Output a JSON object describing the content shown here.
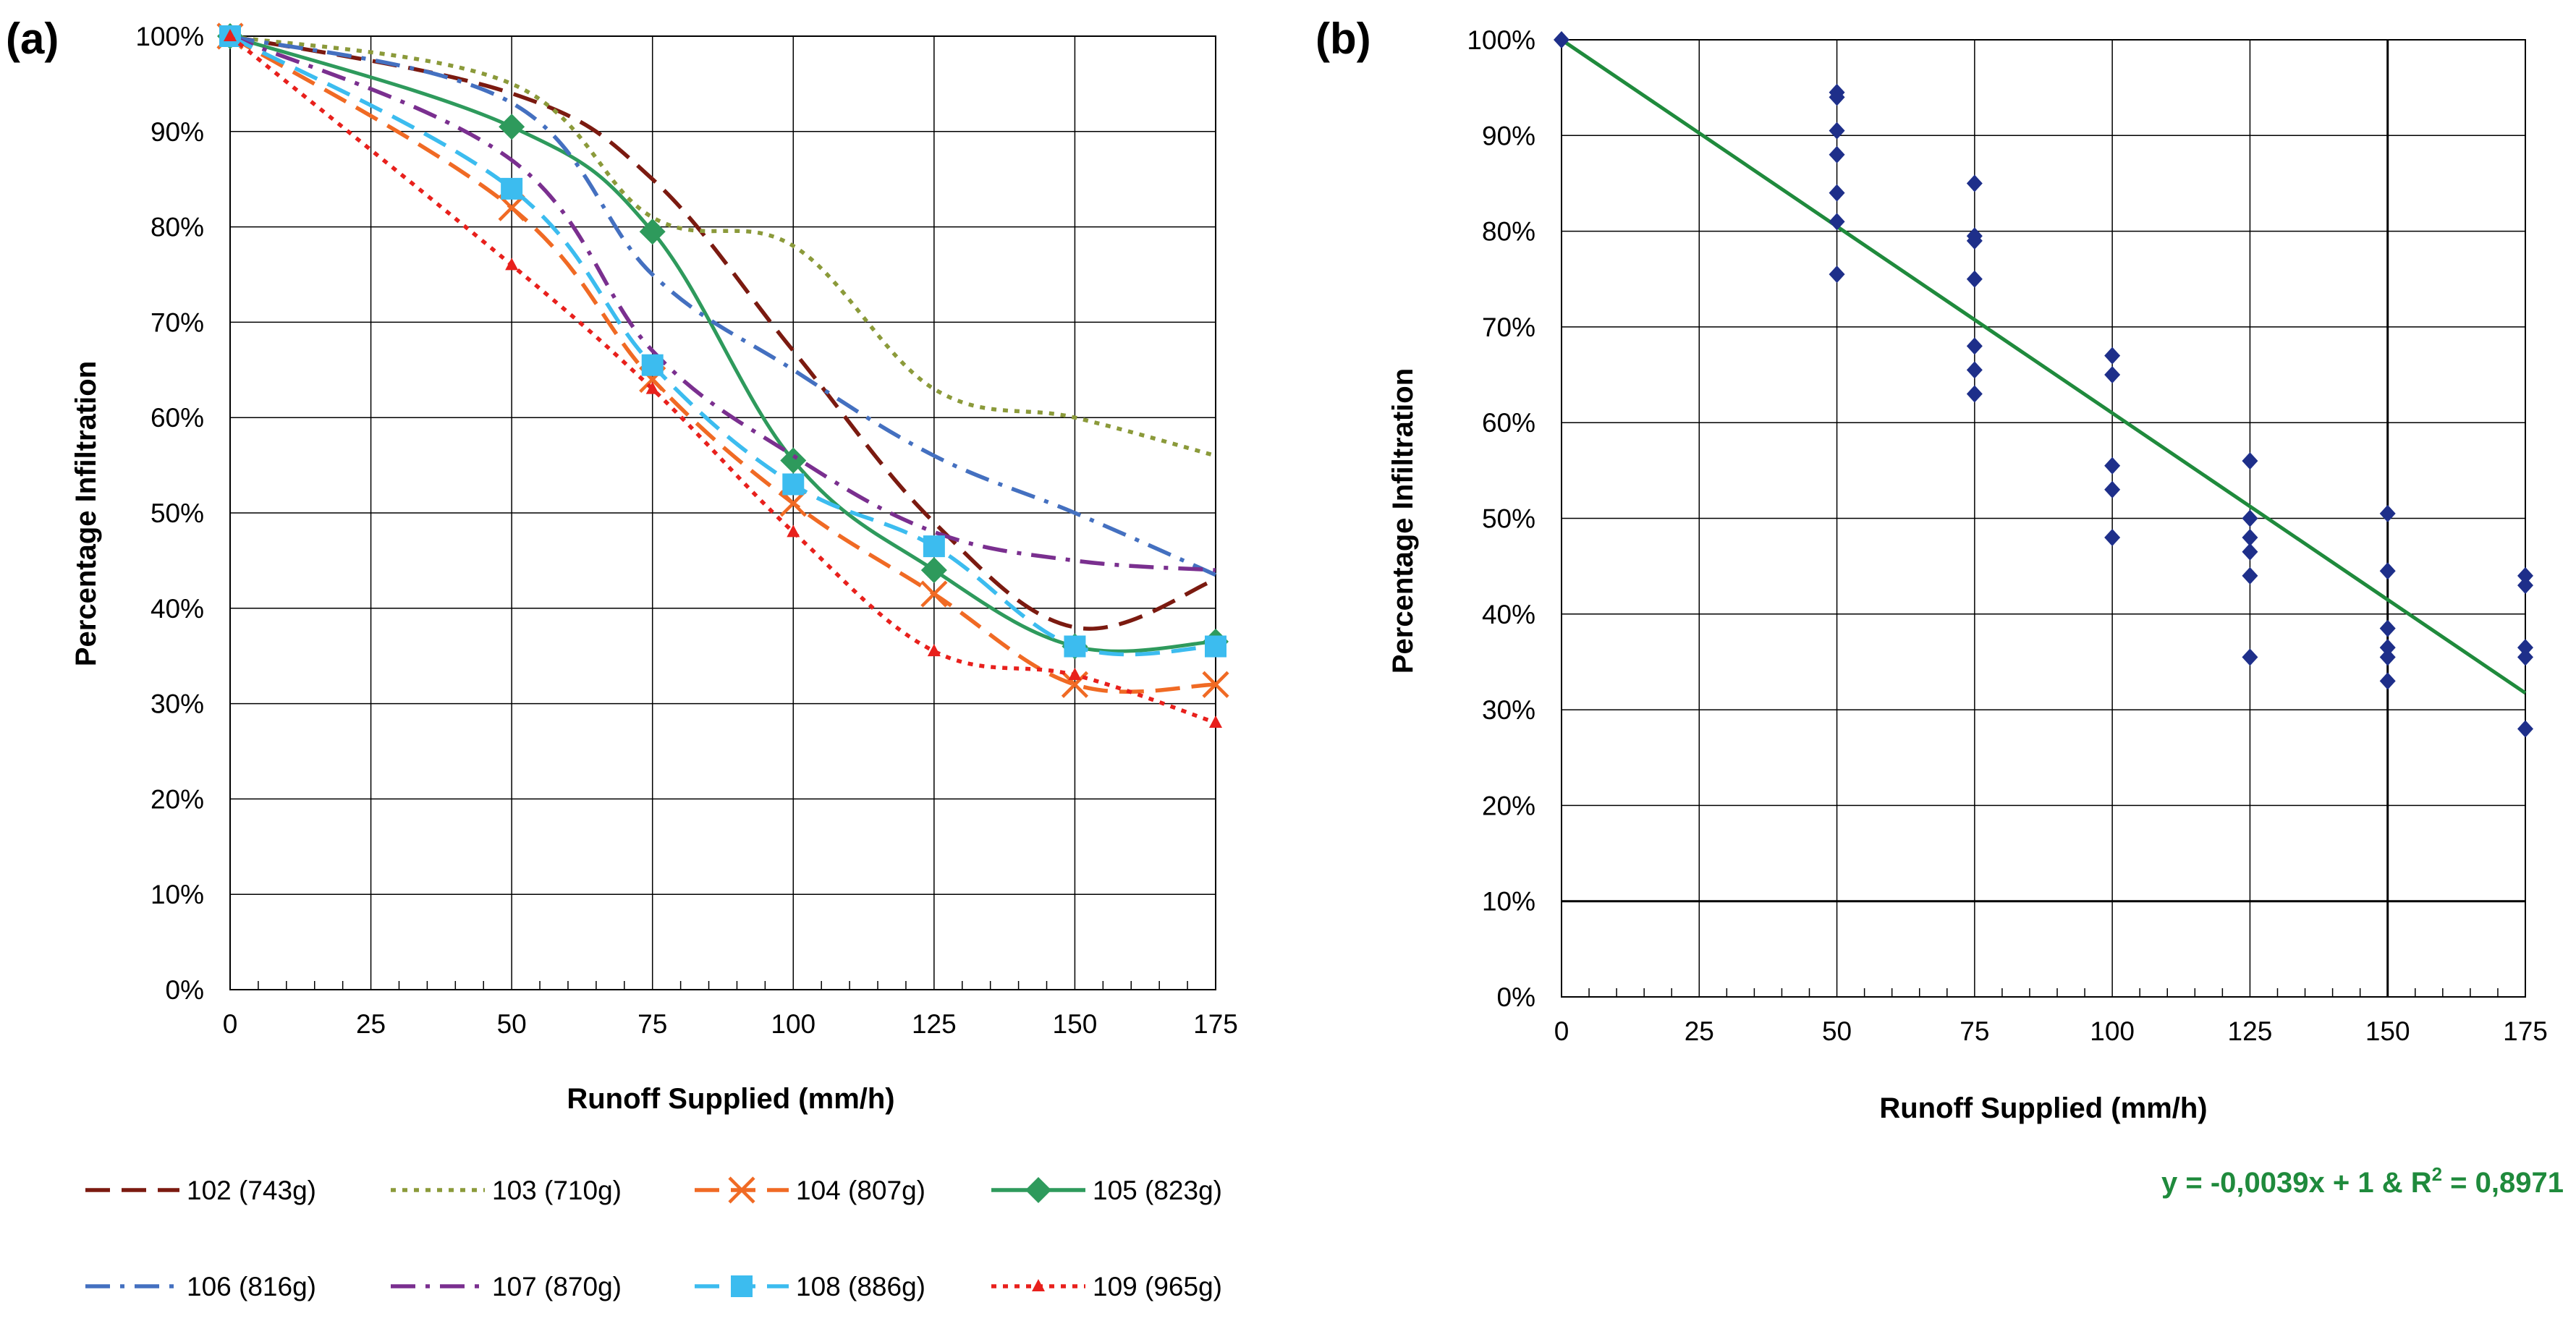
{
  "panels": {
    "a": {
      "label": "(a)"
    },
    "b": {
      "label": "(b)"
    }
  },
  "colors": {
    "s102": "#7b1a10",
    "s103": "#8b9a3a",
    "s104": "#f06a24",
    "s105": "#2e9a5c",
    "s106": "#4470c0",
    "s107": "#7a2f8f",
    "s108": "#3cbcef",
    "s109": "#e8201c",
    "scatter": "#1e2f8a",
    "fit": "#1f8a3c"
  },
  "equation": {
    "part1": "y = -0,0039x + 1   &   R",
    "sup": "2",
    "part2": " = 0,8971"
  },
  "chart_data": [
    {
      "type": "line",
      "panel": "(a)",
      "xlabel": "Runoff Supplied (mm/h)",
      "ylabel": "Percentage Infiltration",
      "x": [
        0,
        50,
        75,
        100,
        125,
        150,
        175
      ],
      "xticks": [
        "0",
        "25",
        "50",
        "75",
        "100",
        "125",
        "150",
        "175"
      ],
      "yticks": [
        "0%",
        "10%",
        "20%",
        "30%",
        "40%",
        "50%",
        "60%",
        "70%",
        "80%",
        "90%",
        "100%"
      ],
      "xlim": [
        0,
        175
      ],
      "ylim": [
        0,
        100
      ],
      "grid": true,
      "legend_position": "bottom",
      "series": [
        {
          "name": "102 (743g)",
          "key": "s102",
          "dash": "long",
          "marker": "none",
          "values": [
            100,
            94,
            85,
            67,
            49,
            38,
            43
          ]
        },
        {
          "name": "103 (710g)",
          "key": "s103",
          "dash": "dot",
          "marker": "none",
          "values": [
            100,
            95,
            81,
            78,
            63,
            60,
            56
          ]
        },
        {
          "name": "104 (807g)",
          "key": "s104",
          "dash": "long",
          "marker": "x",
          "values": [
            100,
            82,
            64,
            51,
            41.5,
            32,
            32
          ]
        },
        {
          "name": "105 (823g)",
          "key": "s105",
          "dash": "solid",
          "marker": "diamond",
          "values": [
            100,
            90.5,
            79.5,
            55.5,
            44,
            36,
            36.5
          ]
        },
        {
          "name": "106 (816g)",
          "key": "s106",
          "dash": "dashdot",
          "marker": "none",
          "values": [
            100,
            93,
            75,
            65,
            56,
            50,
            43.5
          ]
        },
        {
          "name": "107 (870g)",
          "key": "s107",
          "dash": "dashdot",
          "marker": "none",
          "values": [
            100,
            87,
            67,
            56,
            48,
            45,
            44
          ]
        },
        {
          "name": "108 (886g)",
          "key": "s108",
          "dash": "long",
          "marker": "square",
          "values": [
            100,
            84,
            65.5,
            53,
            46.5,
            36,
            36
          ]
        },
        {
          "name": "109 (965g)",
          "key": "s109",
          "dash": "dot",
          "marker": "triangle",
          "values": [
            100,
            76,
            63,
            48,
            35.5,
            33,
            28
          ]
        }
      ]
    },
    {
      "type": "scatter",
      "panel": "(b)",
      "xlabel": "Runoff Supplied (mm/h)",
      "ylabel": "Percentage Infiltration",
      "xticks": [
        "0",
        "25",
        "50",
        "75",
        "100",
        "125",
        "150",
        "175"
      ],
      "yticks": [
        "0%",
        "10%",
        "20%",
        "30%",
        "40%",
        "50%",
        "60%",
        "70%",
        "80%",
        "90%",
        "100%"
      ],
      "xlim": [
        0,
        175
      ],
      "ylim": [
        0,
        100
      ],
      "grid": true,
      "points": [
        [
          0,
          100
        ],
        [
          50,
          94.5
        ],
        [
          50,
          94
        ],
        [
          50,
          90.5
        ],
        [
          50,
          88
        ],
        [
          50,
          84
        ],
        [
          50,
          81
        ],
        [
          50,
          75.5
        ],
        [
          75,
          85
        ],
        [
          75,
          79.5
        ],
        [
          75,
          79
        ],
        [
          75,
          75
        ],
        [
          75,
          68
        ],
        [
          75,
          65.5
        ],
        [
          75,
          63
        ],
        [
          100,
          67
        ],
        [
          100,
          65
        ],
        [
          100,
          55.5
        ],
        [
          100,
          53
        ],
        [
          100,
          48
        ],
        [
          125,
          56
        ],
        [
          125,
          50
        ],
        [
          125,
          48
        ],
        [
          125,
          46.5
        ],
        [
          125,
          44
        ],
        [
          125,
          35.5
        ],
        [
          150,
          50.5
        ],
        [
          150,
          44.5
        ],
        [
          150,
          38.5
        ],
        [
          150,
          36.5
        ],
        [
          150,
          35.5
        ],
        [
          150,
          33
        ],
        [
          175,
          44
        ],
        [
          175,
          43
        ],
        [
          175,
          36.5
        ],
        [
          175,
          35.5
        ],
        [
          175,
          28
        ]
      ],
      "fit": {
        "slope": -0.0039,
        "intercept": 1,
        "r2": 0.8971,
        "x_range": [
          0,
          175
        ]
      }
    }
  ]
}
